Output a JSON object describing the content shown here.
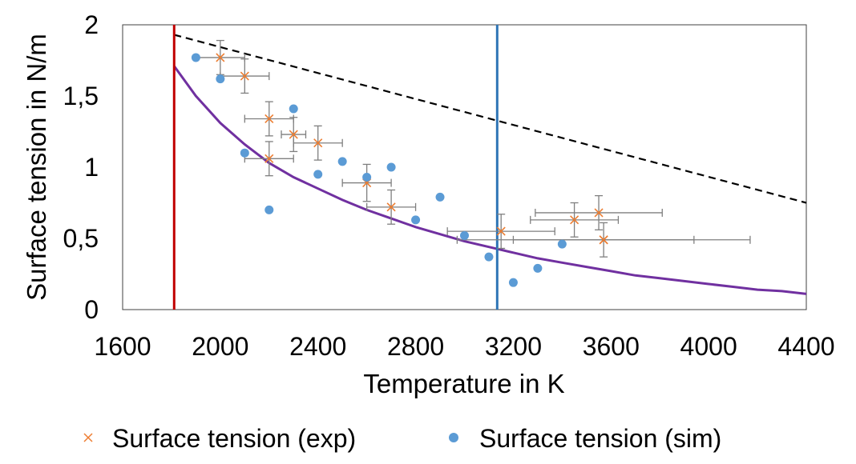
{
  "chart_data": {
    "type": "scatter",
    "title": "",
    "xlabel": "Temperature in K",
    "ylabel": "Surface tension in N/m",
    "xlim": [
      1600,
      4400
    ],
    "ylim": [
      0,
      2
    ],
    "x_ticks": [
      "1600",
      "2000",
      "2400",
      "2800",
      "3200",
      "3600",
      "4000",
      "4400"
    ],
    "y_ticks": [
      "0",
      "0,5",
      "1",
      "1,5",
      "2"
    ],
    "grid": false,
    "legend_position": "bottom",
    "series": [
      {
        "name": "Surface tension (exp)",
        "marker": "x",
        "color": "#ED7D31",
        "points": [
          {
            "x": 2000,
            "y": 1.77,
            "xerr": 100,
            "yerr": 0.12
          },
          {
            "x": 2100,
            "y": 1.64,
            "xerr": 100,
            "yerr": 0.12
          },
          {
            "x": 2200,
            "y": 1.34,
            "xerr": 100,
            "yerr": 0.12
          },
          {
            "x": 2200,
            "y": 1.06,
            "xerr": 100,
            "yerr": 0.12
          },
          {
            "x": 2300,
            "y": 1.23,
            "xerr": 50,
            "yerr": 0.12
          },
          {
            "x": 2400,
            "y": 1.17,
            "xerr": 100,
            "yerr": 0.12
          },
          {
            "x": 2600,
            "y": 0.89,
            "xerr": 100,
            "yerr": 0.13
          },
          {
            "x": 2700,
            "y": 0.72,
            "xerr": 100,
            "yerr": 0.12
          },
          {
            "x": 3150,
            "y": 0.55,
            "xerr": 220,
            "yerr": 0.12
          },
          {
            "x": 3450,
            "y": 0.63,
            "xerr": 180,
            "yerr": 0.12
          },
          {
            "x": 3550,
            "y": 0.68,
            "xerr": 260,
            "yerr": 0.12
          },
          {
            "x": 3570,
            "y": 0.49,
            "xerr": 370,
            "yerr": 0.12
          },
          {
            "x": 3570,
            "y": 0.49,
            "xerr": 600,
            "yerr": 0
          }
        ]
      },
      {
        "name": "Surface tension (sim)",
        "marker": "circle",
        "color": "#5B9BD5",
        "points": [
          {
            "x": 1900,
            "y": 1.77
          },
          {
            "x": 2000,
            "y": 1.62
          },
          {
            "x": 2100,
            "y": 1.1
          },
          {
            "x": 2200,
            "y": 0.7
          },
          {
            "x": 2300,
            "y": 1.41
          },
          {
            "x": 2400,
            "y": 0.95
          },
          {
            "x": 2500,
            "y": 1.04
          },
          {
            "x": 2600,
            "y": 0.93
          },
          {
            "x": 2700,
            "y": 1.0
          },
          {
            "x": 2800,
            "y": 0.63
          },
          {
            "x": 2900,
            "y": 0.79
          },
          {
            "x": 3000,
            "y": 0.52
          },
          {
            "x": 3100,
            "y": 0.37
          },
          {
            "x": 3200,
            "y": 0.19
          },
          {
            "x": 3300,
            "y": 0.29
          },
          {
            "x": 3400,
            "y": 0.46
          }
        ]
      },
      {
        "type": "line",
        "style": "dashed",
        "color": "#000000",
        "x": [
          1811,
          4400
        ],
        "y": [
          1.93,
          0.75
        ]
      },
      {
        "type": "line",
        "style": "solid",
        "color": "#7030A0",
        "x": [
          1811,
          1900,
          2000,
          2100,
          2200,
          2300,
          2400,
          2500,
          2600,
          2700,
          2800,
          2900,
          3000,
          3100,
          3200,
          3300,
          3400,
          3500,
          3600,
          3700,
          3800,
          3900,
          4000,
          4100,
          4200,
          4300,
          4400
        ],
        "y": [
          1.71,
          1.5,
          1.31,
          1.16,
          1.03,
          0.93,
          0.85,
          0.77,
          0.7,
          0.64,
          0.58,
          0.53,
          0.48,
          0.44,
          0.4,
          0.36,
          0.33,
          0.3,
          0.27,
          0.24,
          0.22,
          0.2,
          0.18,
          0.16,
          0.14,
          0.13,
          0.11
        ]
      }
    ],
    "vertical_lines": [
      {
        "x": 1811,
        "color": "#C00000"
      },
      {
        "x": 3134,
        "color": "#2E75B6"
      }
    ]
  }
}
